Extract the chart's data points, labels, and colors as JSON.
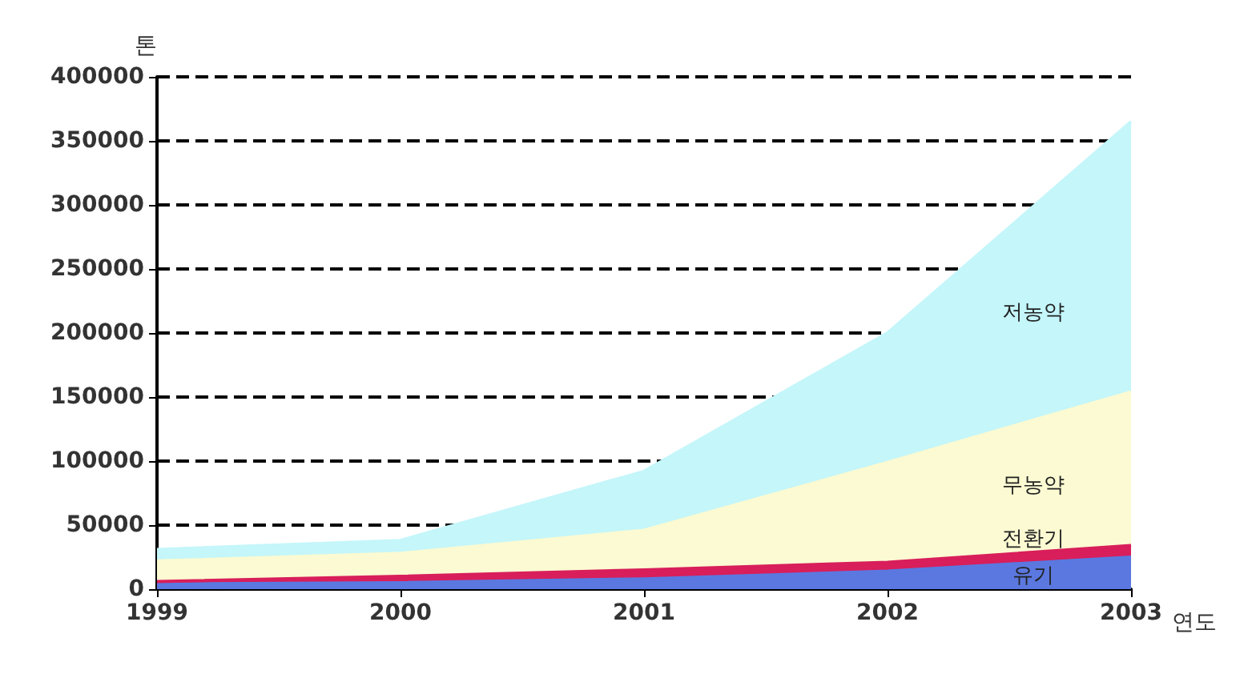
{
  "chart_data": {
    "type": "area",
    "stacked": true,
    "ylabel": "톤",
    "xlabel": "연도",
    "categories": [
      "1999",
      "2000",
      "2001",
      "2002",
      "2003"
    ],
    "ylim": [
      0,
      400000
    ],
    "yticks": [
      0,
      50000,
      100000,
      150000,
      200000,
      250000,
      300000,
      350000,
      400000
    ],
    "grid": "y",
    "legend": false,
    "series": [
      {
        "name": "유기",
        "color": "#5b78e0",
        "values": [
          4000,
          5000,
          8000,
          14000,
          25000
        ]
      },
      {
        "name": "전환기",
        "color": "#d81e5b",
        "values": [
          2000,
          5000,
          7000,
          7000,
          9000
        ]
      },
      {
        "name": "무농약",
        "color": "#fbfad2",
        "values": [
          16000,
          18000,
          31000,
          78000,
          120000
        ]
      },
      {
        "name": "저농약",
        "color": "#c4f6fa",
        "values": [
          9000,
          10000,
          46000,
          101000,
          211000
        ]
      }
    ]
  }
}
